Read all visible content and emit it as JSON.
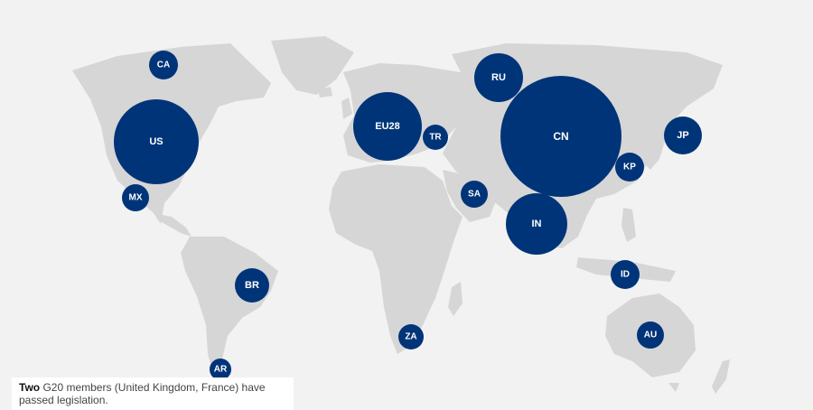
{
  "colors": {
    "background": "#f2f2f2",
    "land": "#d6d6d6",
    "bubble": "#003478",
    "label": "#ffffff"
  },
  "countries": [
    {
      "code": "CA"
    },
    {
      "code": "US"
    },
    {
      "code": "MX"
    },
    {
      "code": "BR"
    },
    {
      "code": "AR"
    },
    {
      "code": "EU28"
    },
    {
      "code": "TR"
    },
    {
      "code": "RU"
    },
    {
      "code": "SA"
    },
    {
      "code": "CN"
    },
    {
      "code": "IN"
    },
    {
      "code": "KP"
    },
    {
      "code": "JP"
    },
    {
      "code": "ID"
    },
    {
      "code": "ZA"
    },
    {
      "code": "AU"
    }
  ],
  "caption": {
    "bold": "Two",
    "text": " G20 members (United Kingdom, France) have passed legislation."
  }
}
